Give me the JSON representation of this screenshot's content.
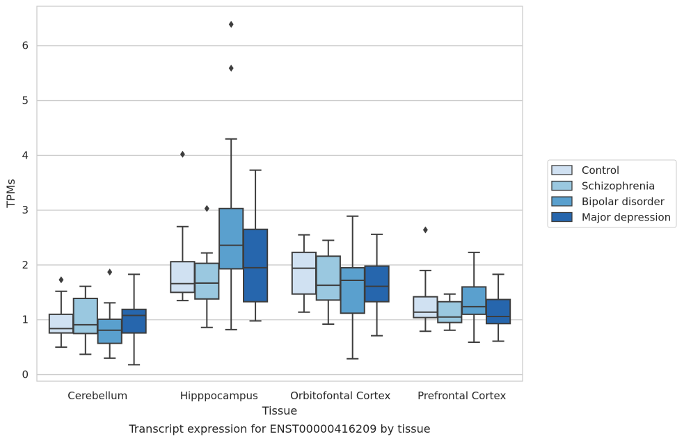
{
  "chart_data": {
    "type": "boxplot",
    "xlabel": "Tissue",
    "ylabel": "TPMs",
    "caption": "Transcript expression for ENST00000416209 by tissue",
    "categories": [
      "Cerebellum",
      "Hipppocampus",
      "Orbitofontal Cortex",
      "Prefrontal Cortex"
    ],
    "ylim": [
      -0.12,
      6.72
    ],
    "yticks": [
      0,
      1,
      2,
      3,
      4,
      5,
      6
    ],
    "grid": "horizontal",
    "legend_position": "right",
    "series": [
      {
        "name": "Control",
        "color": "#d0e1f2",
        "boxes": [
          {
            "whisker_low": 0.5,
            "q1": 0.76,
            "median": 0.84,
            "q3": 1.1,
            "whisker_high": 1.52,
            "outliers": [
              1.73
            ]
          },
          {
            "whisker_low": 1.35,
            "q1": 1.5,
            "median": 1.66,
            "q3": 2.06,
            "whisker_high": 2.7,
            "outliers": [
              4.02
            ]
          },
          {
            "whisker_low": 1.14,
            "q1": 1.47,
            "median": 1.94,
            "q3": 2.23,
            "whisker_high": 2.55,
            "outliers": []
          },
          {
            "whisker_low": 0.79,
            "q1": 1.04,
            "median": 1.14,
            "q3": 1.42,
            "whisker_high": 1.9,
            "outliers": [
              2.64
            ]
          }
        ]
      },
      {
        "name": "Schizophrenia",
        "color": "#9ac8e0",
        "boxes": [
          {
            "whisker_low": 0.37,
            "q1": 0.75,
            "median": 0.91,
            "q3": 1.39,
            "whisker_high": 1.61,
            "outliers": []
          },
          {
            "whisker_low": 0.86,
            "q1": 1.38,
            "median": 1.67,
            "q3": 2.03,
            "whisker_high": 2.22,
            "outliers": [
              3.03
            ]
          },
          {
            "whisker_low": 0.92,
            "q1": 1.36,
            "median": 1.63,
            "q3": 2.16,
            "whisker_high": 2.45,
            "outliers": []
          },
          {
            "whisker_low": 0.81,
            "q1": 0.95,
            "median": 1.05,
            "q3": 1.33,
            "whisker_high": 1.47,
            "outliers": []
          }
        ]
      },
      {
        "name": "Bipolar disorder",
        "color": "#5aa0ce",
        "boxes": [
          {
            "whisker_low": 0.3,
            "q1": 0.57,
            "median": 0.81,
            "q3": 1.01,
            "whisker_high": 1.31,
            "outliers": [
              1.87
            ]
          },
          {
            "whisker_low": 0.82,
            "q1": 1.93,
            "median": 2.36,
            "q3": 3.03,
            "whisker_high": 4.3,
            "outliers": [
              5.59,
              6.39
            ]
          },
          {
            "whisker_low": 0.29,
            "q1": 1.12,
            "median": 1.72,
            "q3": 1.95,
            "whisker_high": 2.89,
            "outliers": []
          },
          {
            "whisker_low": 0.59,
            "q1": 1.1,
            "median": 1.24,
            "q3": 1.6,
            "whisker_high": 2.23,
            "outliers": []
          }
        ]
      },
      {
        "name": "Major depression",
        "color": "#2666ad",
        "boxes": [
          {
            "whisker_low": 0.18,
            "q1": 0.76,
            "median": 1.08,
            "q3": 1.19,
            "whisker_high": 1.83,
            "outliers": []
          },
          {
            "whisker_low": 0.98,
            "q1": 1.33,
            "median": 1.95,
            "q3": 2.65,
            "whisker_high": 3.73,
            "outliers": []
          },
          {
            "whisker_low": 0.71,
            "q1": 1.33,
            "median": 1.61,
            "q3": 1.98,
            "whisker_high": 2.56,
            "outliers": []
          },
          {
            "whisker_low": 0.61,
            "q1": 0.93,
            "median": 1.06,
            "q3": 1.37,
            "whisker_high": 1.83,
            "outliers": []
          }
        ]
      }
    ]
  }
}
